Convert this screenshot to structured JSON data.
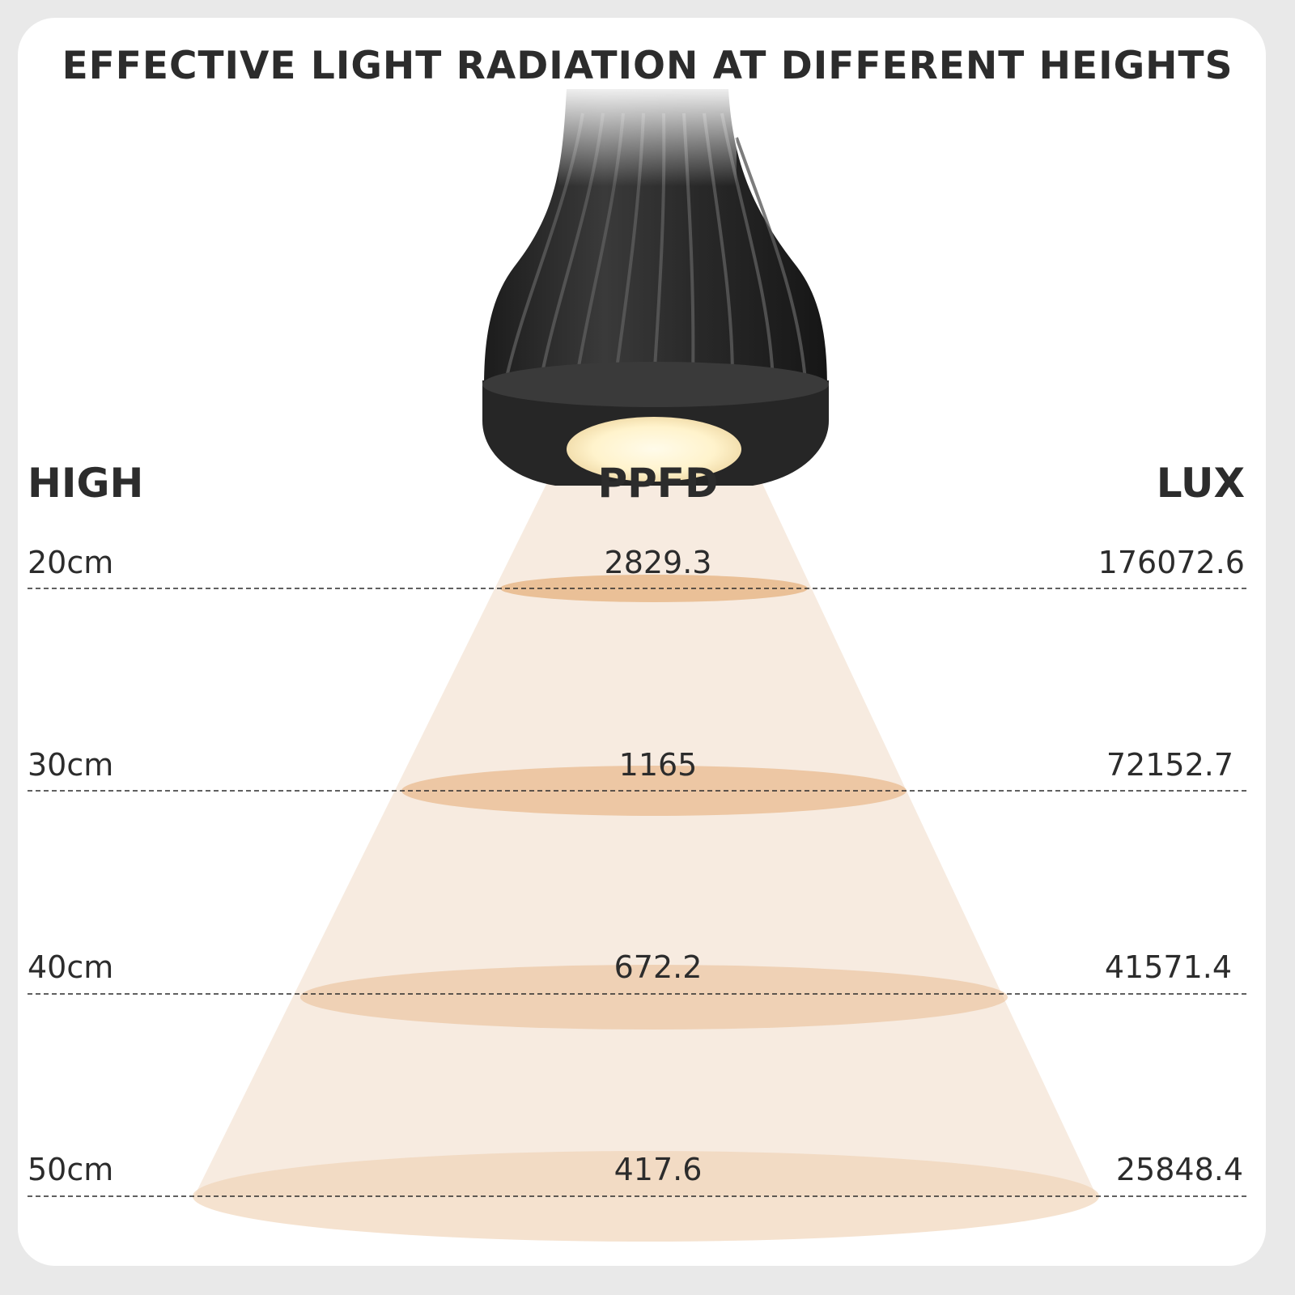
{
  "title": "EFFECTIVE LIGHT RADIATION AT DIFFERENT HEIGHTS",
  "headers": {
    "height": "HIGH",
    "ppfd": "PPFD",
    "lux": "LUX"
  },
  "rows": [
    {
      "height": "20cm",
      "ppfd": "2829.3",
      "lux": "176072.6"
    },
    {
      "height": "30cm",
      "ppfd": "1165",
      "lux": "72152.7"
    },
    {
      "height": "40cm",
      "ppfd": "672.2",
      "lux": "41571.4"
    },
    {
      "height": "50cm",
      "ppfd": "417.6",
      "lux": "25848.4"
    }
  ],
  "colors": {
    "background": "#e9e9e9",
    "card": "#ffffff",
    "text": "#2c2c2c",
    "beam": "#f7ebe0",
    "spot": "#e8b88a",
    "lamp_body": "#2b2b2b"
  },
  "icons": {
    "lamp": "grow-light-bulb-icon"
  }
}
